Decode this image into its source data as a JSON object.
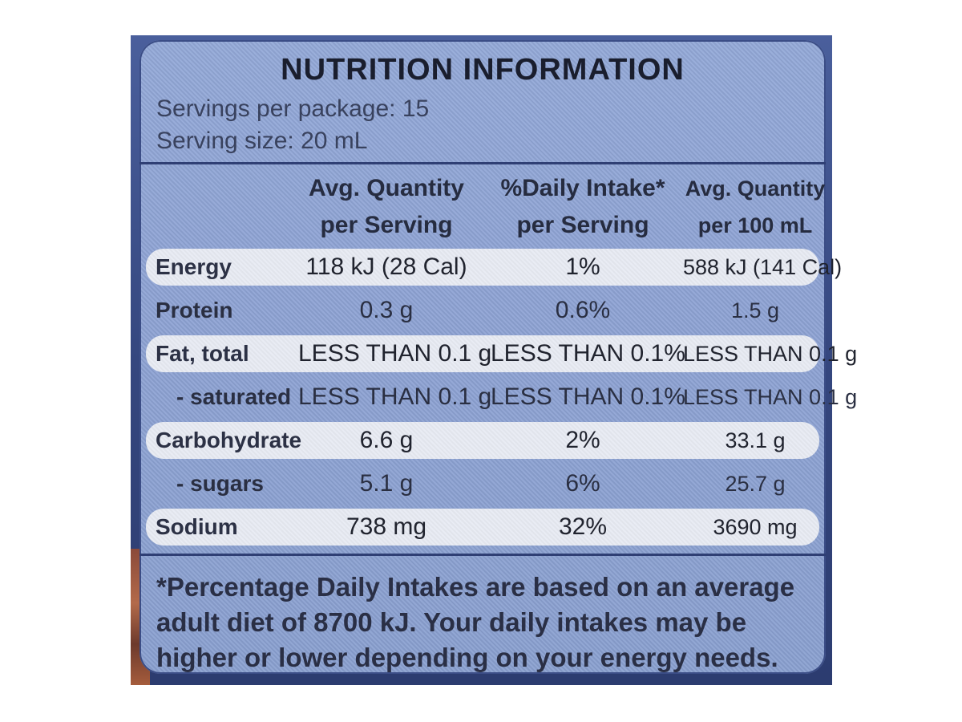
{
  "panel": {
    "title": "NUTRITION INFORMATION",
    "servings_per_package": "Servings per package: 15",
    "serving_size": "Serving size: 20 mL"
  },
  "columns": [
    {
      "line1": "Avg. Quantity",
      "line2": "per Serving"
    },
    {
      "line1": "%Daily Intake*",
      "line2": "per Serving"
    },
    {
      "line1": "Avg. Quantity",
      "line2": "per 100 mL"
    }
  ],
  "rows": [
    {
      "name": "Energy",
      "per_serving": "118 kJ (28 Cal)",
      "daily_intake": "1%",
      "per_100ml": "588 kJ (141 Cal)"
    },
    {
      "name": "Protein",
      "per_serving": "0.3 g",
      "daily_intake": "0.6%",
      "per_100ml": "1.5 g"
    },
    {
      "name": "Fat, total",
      "per_serving": "LESS THAN 0.1 g",
      "daily_intake": "LESS THAN 0.1%",
      "per_100ml": "LESS THAN 0.1 g"
    },
    {
      "name": "- saturated",
      "per_serving": "LESS THAN 0.1 g",
      "daily_intake": "LESS THAN 0.1%",
      "per_100ml": "LESS THAN 0.1 g"
    },
    {
      "name": "Carbohydrate",
      "per_serving": "6.6 g",
      "daily_intake": "2%",
      "per_100ml": "33.1 g"
    },
    {
      "name": "- sugars",
      "per_serving": "5.1 g",
      "daily_intake": "6%",
      "per_100ml": "25.7 g"
    },
    {
      "name": "Sodium",
      "per_serving": "738 mg",
      "daily_intake": "32%",
      "per_100ml": "3690 mg"
    }
  ],
  "footnote": "*Percentage Daily Intakes are based on an average adult diet of 8700 kJ. Your daily intakes may be higher or lower depending on your energy needs."
}
